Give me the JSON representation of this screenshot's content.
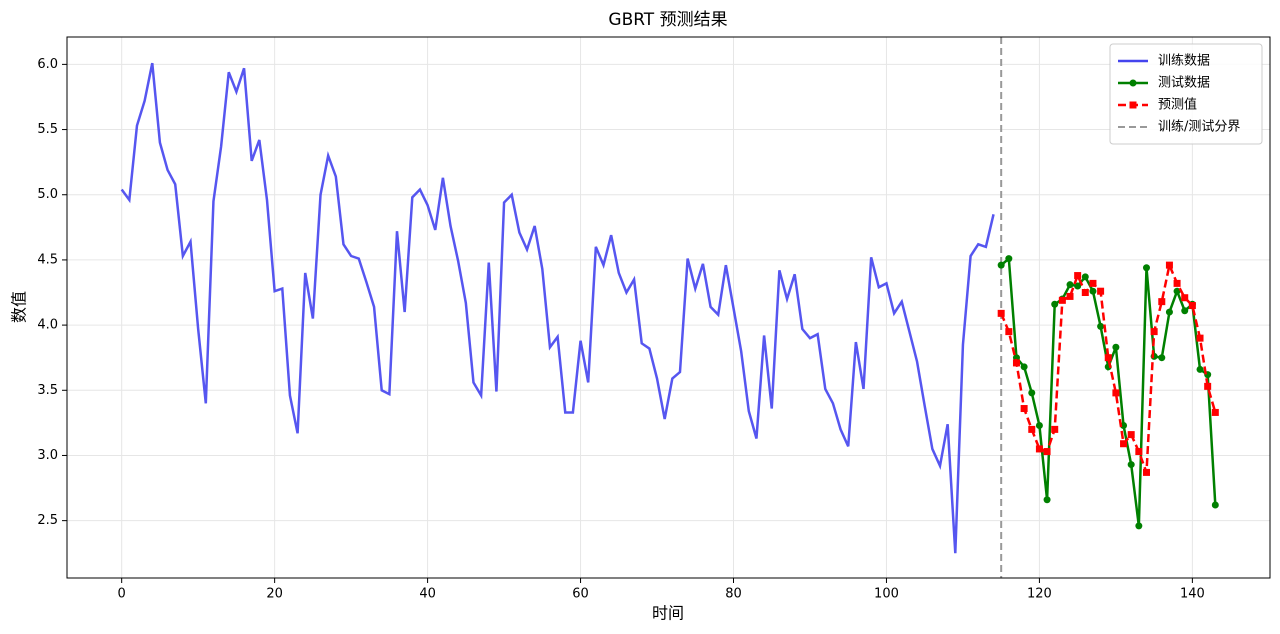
{
  "chart_data": {
    "type": "line",
    "title": "GBRT 预测结果",
    "x_label": "时间",
    "y_label": "数值",
    "xlim": [
      -7.15,
      150.15
    ],
    "ylim": [
      2.06,
      6.21
    ],
    "xticks": [
      0,
      20,
      40,
      60,
      80,
      100,
      120,
      140
    ],
    "yticks": [
      2.5,
      {
        "value": 3,
        "label": "3.0"
      },
      3.5,
      {
        "value": 4,
        "label": "4.0"
      },
      4.5,
      {
        "value": 5,
        "label": "5.0"
      },
      5.5,
      {
        "value": 6,
        "label": "6.0"
      }
    ],
    "grid": true,
    "legend": "upper right",
    "series": [
      {
        "name": "训练数据",
        "color": "#4444ee",
        "style": "solid",
        "marker": "none",
        "x": [
          0,
          1,
          2,
          3,
          4,
          5,
          6,
          7,
          8,
          9,
          10,
          11,
          12,
          13,
          14,
          15,
          16,
          17,
          18,
          19,
          20,
          21,
          22,
          23,
          24,
          25,
          26,
          27,
          28,
          29,
          30,
          31,
          32,
          33,
          34,
          35,
          36,
          37,
          38,
          39,
          40,
          41,
          42,
          43,
          44,
          45,
          46,
          47,
          48,
          49,
          50,
          51,
          52,
          53,
          54,
          55,
          56,
          57,
          58,
          59,
          60,
          61,
          62,
          63,
          64,
          65,
          66,
          67,
          68,
          69,
          70,
          71,
          72,
          73,
          74,
          75,
          76,
          77,
          78,
          79,
          80,
          81,
          82,
          83,
          84,
          85,
          86,
          87,
          88,
          89,
          90,
          91,
          92,
          93,
          94,
          95,
          96,
          97,
          98,
          99,
          100,
          101,
          102,
          103,
          104,
          105,
          106,
          107,
          108,
          109,
          110,
          111,
          112,
          113,
          114
        ],
        "values": [
          5.04,
          4.96,
          5.53,
          5.72,
          6.01,
          5.4,
          5.19,
          5.08,
          4.53,
          4.64,
          3.97,
          3.4,
          4.95,
          5.37,
          5.94,
          5.79,
          5.97,
          5.26,
          5.42,
          4.96,
          4.26,
          4.28,
          3.46,
          3.17,
          4.4,
          4.05,
          5.0,
          5.3,
          5.14,
          4.62,
          4.53,
          4.51,
          4.33,
          4.14,
          3.5,
          3.47,
          4.72,
          4.1,
          4.98,
          5.04,
          4.92,
          4.73,
          5.13,
          4.76,
          4.49,
          4.17,
          3.56,
          3.46,
          4.48,
          3.49,
          4.94,
          5.0,
          4.71,
          4.58,
          4.76,
          4.43,
          3.83,
          3.91,
          3.33,
          3.33,
          3.88,
          3.56,
          4.6,
          4.46,
          4.69,
          4.4,
          4.25,
          4.35,
          3.86,
          3.82,
          3.59,
          3.28,
          3.59,
          3.64,
          4.51,
          4.28,
          4.47,
          4.14,
          4.08,
          4.46,
          4.13,
          3.8,
          3.34,
          3.13,
          3.92,
          3.36,
          4.42,
          4.2,
          4.39,
          3.97,
          3.9,
          3.93,
          3.51,
          3.4,
          3.2,
          3.07,
          3.87,
          3.51,
          4.52,
          4.29,
          4.32,
          4.09,
          4.18,
          3.95,
          3.72,
          3.38,
          3.05,
          2.92,
          3.24,
          2.25,
          3.85,
          4.53,
          4.62,
          4.6,
          4.85
        ]
      },
      {
        "name": "测试数据",
        "color": "#008000",
        "style": "solid",
        "marker": "circle",
        "x": [
          115,
          116,
          117,
          118,
          119,
          120,
          121,
          122,
          123,
          124,
          125,
          126,
          127,
          128,
          129,
          130,
          131,
          132,
          133,
          134,
          135,
          136,
          137,
          138,
          139,
          140,
          141,
          142,
          143
        ],
        "values": [
          4.46,
          4.51,
          3.75,
          3.68,
          3.48,
          3.23,
          2.66,
          4.16,
          4.2,
          4.31,
          4.3,
          4.37,
          4.26,
          3.99,
          3.68,
          3.83,
          3.23,
          2.93,
          2.46,
          4.44,
          3.76,
          3.75,
          4.1,
          4.26,
          4.11,
          4.16,
          3.66,
          3.62,
          2.62
        ]
      },
      {
        "name": "预测值",
        "color": "#ff0000",
        "style": "dashed",
        "marker": "square",
        "x": [
          115,
          116,
          117,
          118,
          119,
          120,
          121,
          122,
          123,
          124,
          125,
          126,
          127,
          128,
          129,
          130,
          131,
          132,
          133,
          134,
          135,
          136,
          137,
          138,
          139,
          140,
          141,
          142,
          143
        ],
        "values": [
          4.09,
          3.95,
          3.71,
          3.36,
          3.2,
          3.05,
          3.03,
          3.2,
          4.19,
          4.22,
          4.38,
          4.25,
          4.32,
          4.26,
          3.75,
          3.48,
          3.09,
          3.16,
          3.03,
          2.87,
          3.95,
          4.18,
          4.46,
          4.32,
          4.21,
          4.15,
          3.9,
          3.53,
          3.33
        ]
      }
    ],
    "vlines": [
      {
        "x": 115,
        "name": "训练/测试分界",
        "color": "#999999"
      }
    ]
  }
}
